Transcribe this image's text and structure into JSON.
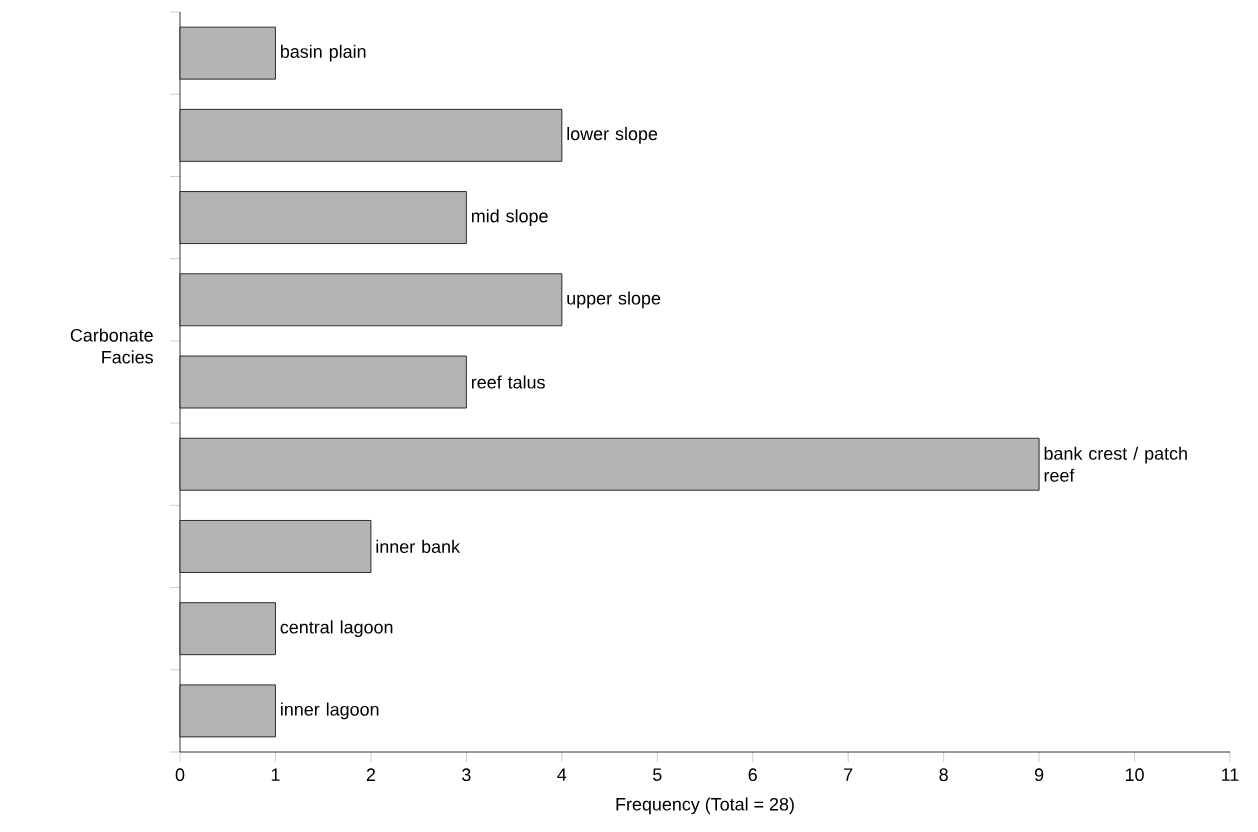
{
  "chart_data": {
    "type": "bar",
    "orientation": "horizontal",
    "xlabel": "Frequency (Total = 28)",
    "ylabel": "Carbonate Facies",
    "categories": [
      "basin plain",
      "lower slope",
      "mid slope",
      "upper slope",
      "reef talus",
      "bank crest / patch reef",
      "inner bank",
      "central lagoon",
      "inner lagoon"
    ],
    "values": [
      1,
      4,
      3,
      4,
      3,
      9,
      2,
      1,
      1
    ],
    "color": "#b4b4b4",
    "xlim": [
      0,
      11
    ],
    "xticks": [
      0,
      1,
      2,
      3,
      4,
      5,
      6,
      7,
      8,
      9,
      10,
      11
    ],
    "grid": false
  }
}
